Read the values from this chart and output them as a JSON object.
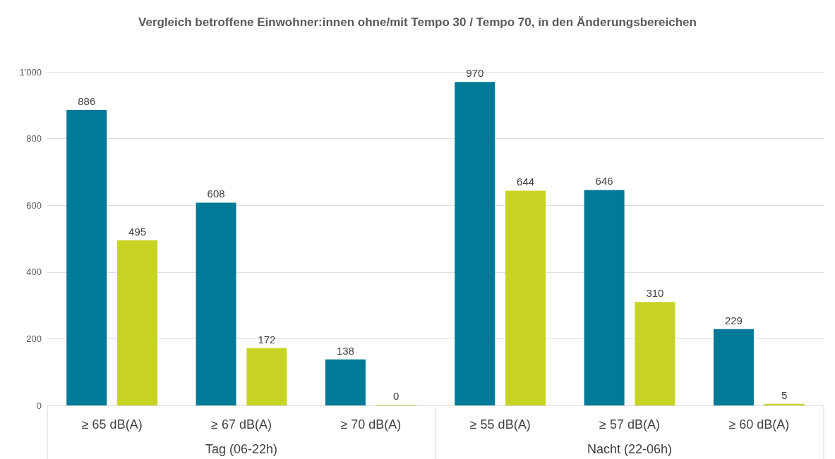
{
  "chart_data": {
    "type": "bar",
    "title": "Vergleich betroffene Einwohner:innen ohne/mit Tempo 30 / Tempo 70, in den Änderungsbereichen",
    "categories": [
      "≥ 65 dB(A)",
      "≥ 67 dB(A)",
      "≥ 70 dB(A)",
      "≥ 55 dB(A)",
      "≥ 57 dB(A)",
      "≥ 60 dB(A)"
    ],
    "series": [
      {
        "color": "#007a96",
        "values": [
          886,
          608,
          138,
          970,
          646,
          229
        ]
      },
      {
        "color": "#c8d424",
        "values": [
          495,
          172,
          0,
          644,
          310,
          5
        ]
      }
    ],
    "ylim": [
      0,
      1000
    ],
    "yticks": [
      0,
      200,
      400,
      600,
      800,
      {
        "value": 1000,
        "label": "1'000"
      }
    ],
    "grid": "y",
    "data_labels": true,
    "annotations": [
      "Tag (06-22h)",
      "Nacht (22-06h)"
    ]
  }
}
